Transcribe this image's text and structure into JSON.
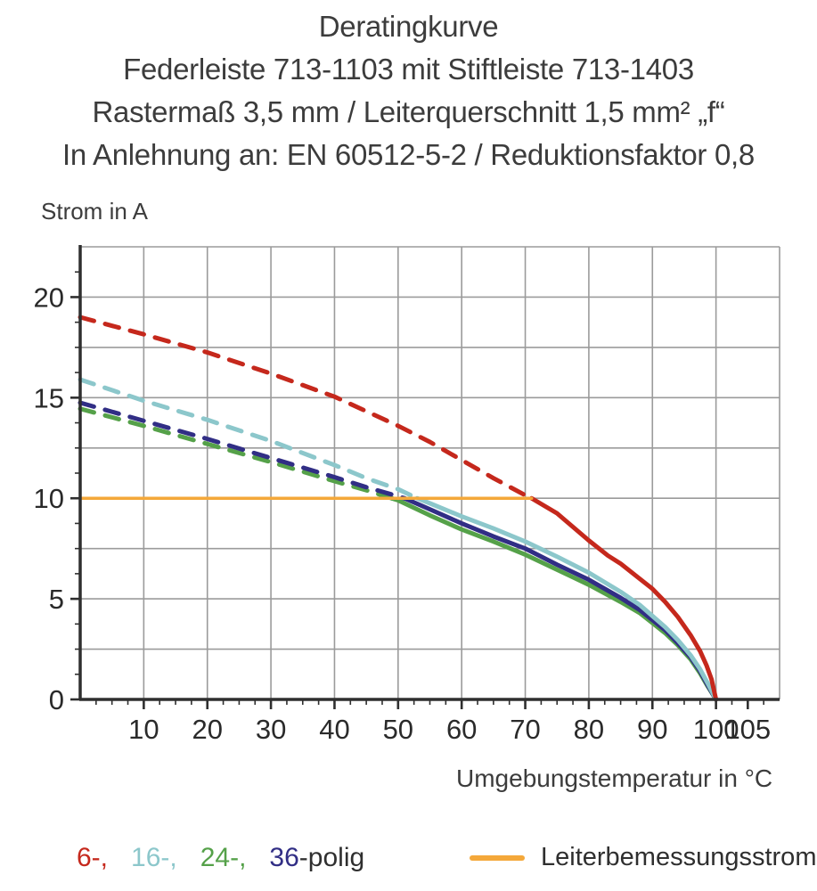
{
  "title": {
    "line1": "Deratingkurve",
    "line2": "Federleiste 713-1103 mit Stiftleiste 713-1403",
    "line3": "Rastermaß 3,5 mm / Leiterquerschnitt 1,5 mm² „f“",
    "line4": "In Anlehnung an: EN 60512-5-2 / Reduktionsfaktor 0,8"
  },
  "chart_data": {
    "type": "line",
    "title": "Deratingkurve",
    "xlabel": "Umgebungstemperatur in °C",
    "ylabel": "Strom in A",
    "xlim": [
      0,
      110
    ],
    "ylim": [
      0,
      22.5
    ],
    "x_ticks": [
      10,
      20,
      30,
      40,
      50,
      60,
      70,
      80,
      90,
      100,
      105
    ],
    "y_ticks": [
      0,
      5,
      10,
      15,
      20
    ],
    "x_minor_step": 2.5,
    "y_minor_step": 1.25,
    "grid": {
      "x_step": 10,
      "y_step": 2.5,
      "color": "#9b9b9b"
    },
    "axis_color": "#2f2f2f",
    "series": [
      {
        "name": "24-polig",
        "color": "#55a149",
        "width": 5,
        "dashed": [
          [
            0,
            14.45
          ],
          [
            10,
            13.6
          ],
          [
            20,
            12.7
          ],
          [
            30,
            11.8
          ],
          [
            40,
            10.85
          ],
          [
            45,
            10.4
          ],
          [
            49,
            10
          ]
        ],
        "solid": [
          [
            49,
            10
          ],
          [
            50,
            9.9
          ],
          [
            55,
            9.15
          ],
          [
            60,
            8.45
          ],
          [
            65,
            7.85
          ],
          [
            70,
            7.2
          ],
          [
            75,
            6.45
          ],
          [
            80,
            5.7
          ],
          [
            85,
            4.85
          ],
          [
            88,
            4.3
          ],
          [
            90,
            3.8
          ],
          [
            92,
            3.3
          ],
          [
            94,
            2.7
          ],
          [
            96,
            2.0
          ],
          [
            97.5,
            1.3
          ],
          [
            98.7,
            0.65
          ],
          [
            100,
            0
          ]
        ]
      },
      {
        "name": "36-polig",
        "color": "#312e85",
        "width": 5,
        "dashed": [
          [
            0,
            14.75
          ],
          [
            10,
            13.85
          ],
          [
            20,
            12.95
          ],
          [
            30,
            12.0
          ],
          [
            40,
            11.05
          ],
          [
            45,
            10.55
          ],
          [
            50,
            10.1
          ],
          [
            51,
            10
          ]
        ],
        "solid": [
          [
            51,
            10
          ],
          [
            55,
            9.45
          ],
          [
            60,
            8.75
          ],
          [
            65,
            8.1
          ],
          [
            70,
            7.5
          ],
          [
            75,
            6.7
          ],
          [
            80,
            5.95
          ],
          [
            85,
            5.05
          ],
          [
            88,
            4.45
          ],
          [
            90,
            3.95
          ],
          [
            92,
            3.45
          ],
          [
            94,
            2.8
          ],
          [
            96,
            2.1
          ],
          [
            97.5,
            1.4
          ],
          [
            98.7,
            0.7
          ],
          [
            100,
            0
          ]
        ]
      },
      {
        "name": "16-polig",
        "color": "#8cc7cb",
        "width": 5,
        "dashed": [
          [
            0,
            15.9
          ],
          [
            10,
            14.85
          ],
          [
            20,
            13.9
          ],
          [
            30,
            12.85
          ],
          [
            40,
            11.65
          ],
          [
            45,
            11.0
          ],
          [
            50,
            10.45
          ],
          [
            53,
            10
          ]
        ],
        "solid": [
          [
            53,
            10
          ],
          [
            55,
            9.75
          ],
          [
            60,
            9.1
          ],
          [
            65,
            8.5
          ],
          [
            70,
            7.85
          ],
          [
            75,
            7.1
          ],
          [
            80,
            6.3
          ],
          [
            85,
            5.35
          ],
          [
            88,
            4.7
          ],
          [
            90,
            4.15
          ],
          [
            92,
            3.6
          ],
          [
            94,
            2.95
          ],
          [
            96,
            2.2
          ],
          [
            97.5,
            1.5
          ],
          [
            98.7,
            0.8
          ],
          [
            100,
            0
          ]
        ]
      },
      {
        "name": "6-polig",
        "color": "#c5281c",
        "width": 5,
        "dashed": [
          [
            0,
            19.0
          ],
          [
            10,
            18.15
          ],
          [
            20,
            17.25
          ],
          [
            30,
            16.2
          ],
          [
            40,
            15.05
          ],
          [
            50,
            13.6
          ],
          [
            55,
            12.8
          ],
          [
            60,
            11.9
          ],
          [
            65,
            11.0
          ],
          [
            70,
            10.15
          ],
          [
            71,
            10
          ]
        ],
        "solid": [
          [
            71,
            10
          ],
          [
            75,
            9.25
          ],
          [
            80,
            7.9
          ],
          [
            83,
            7.15
          ],
          [
            85,
            6.75
          ],
          [
            88,
            6.0
          ],
          [
            90,
            5.5
          ],
          [
            92,
            4.85
          ],
          [
            94,
            4.1
          ],
          [
            96,
            3.2
          ],
          [
            97.5,
            2.4
          ],
          [
            98.5,
            1.7
          ],
          [
            99.3,
            1.0
          ],
          [
            100,
            0
          ]
        ]
      },
      {
        "name": "Leiterbemessungsstrom",
        "color": "#f4a83a",
        "width": 3.5,
        "solid": [
          [
            0,
            10
          ],
          [
            71,
            10
          ]
        ]
      }
    ]
  },
  "legend": {
    "items": [
      {
        "text": "6-,",
        "color": "#c5281c"
      },
      {
        "text": "16-,",
        "color": "#8cc7cb"
      },
      {
        "text": "24-,",
        "color": "#55a149"
      },
      {
        "text": "36",
        "color": "#312e85"
      },
      {
        "text": "-polig",
        "color": "#2f2f2f"
      }
    ],
    "rated_current": {
      "swatch_color": "#f4a83a",
      "label": "Leiterbemessungsstrom"
    }
  }
}
